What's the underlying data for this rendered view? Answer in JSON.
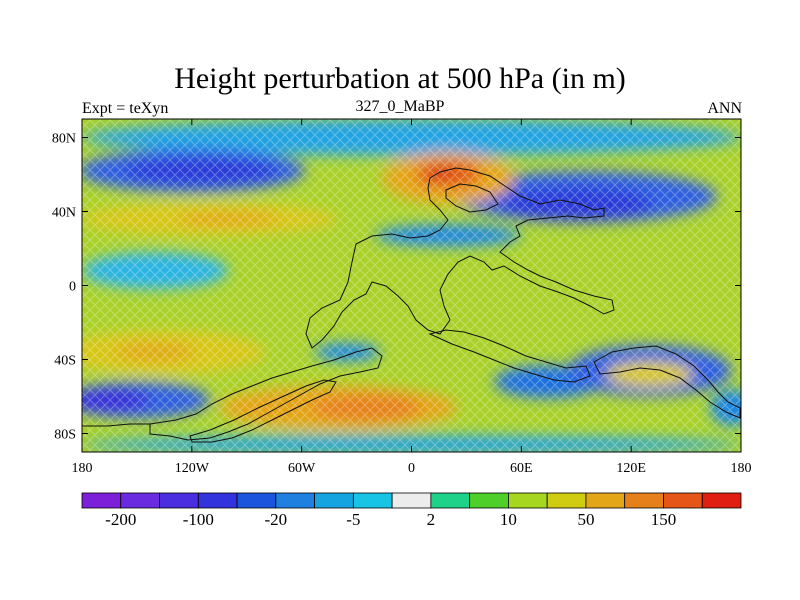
{
  "title": "Height perturbation at 500 hPa (in m)",
  "subtitle_left": "Expt = teXyn",
  "subtitle_center": "327_0_MaBP",
  "subtitle_right": "ANN",
  "lat_ticks": [
    {
      "value": 80,
      "label": "80N"
    },
    {
      "value": 40,
      "label": "40N"
    },
    {
      "value": 0,
      "label": "0"
    },
    {
      "value": -40,
      "label": "40S"
    },
    {
      "value": -80,
      "label": "80S"
    }
  ],
  "lon_ticks": [
    {
      "value": -180,
      "label": "180"
    },
    {
      "value": -120,
      "label": "120W"
    },
    {
      "value": -60,
      "label": "60W"
    },
    {
      "value": 0,
      "label": "0"
    },
    {
      "value": 60,
      "label": "60E"
    },
    {
      "value": 120,
      "label": "120E"
    },
    {
      "value": 180,
      "label": "180"
    }
  ],
  "colorbar": {
    "colors": [
      "#7b1fd9",
      "#6a2be0",
      "#4b2ee0",
      "#3333dd",
      "#1b55dd",
      "#1f80e0",
      "#16a4e0",
      "#18c4e6",
      "#ececec",
      "#1fd28a",
      "#4ecf2a",
      "#a6d61f",
      "#d0cc12",
      "#e3a617",
      "#e6801a",
      "#e65518",
      "#e01e12"
    ],
    "labels": [
      {
        "after_box": 1,
        "text": "-200"
      },
      {
        "after_box": 3,
        "text": "-100"
      },
      {
        "after_box": 5,
        "text": "-20"
      },
      {
        "after_box": 7,
        "text": "-5"
      },
      {
        "after_box": 9,
        "text": "2"
      },
      {
        "after_box": 11,
        "text": "10"
      },
      {
        "after_box": 13,
        "text": "50"
      },
      {
        "after_box": 15,
        "text": "150"
      }
    ]
  },
  "field_background_color": "#a9d12a",
  "field_regions": [
    {
      "name": "north-polar-band",
      "color": "#21a3e2",
      "lon": 0,
      "lat": 80,
      "rx": 180,
      "ry": 10
    },
    {
      "name": "low-nw-pacific",
      "color": "#2f5fe0",
      "lon": -120,
      "lat": 62,
      "rx": 62,
      "ry": 12
    },
    {
      "name": "low-nw-core",
      "color": "#2a3bd8",
      "lon": -115,
      "lat": 62,
      "rx": 42,
      "ry": 7
    },
    {
      "name": "low-ne-asia",
      "color": "#2f5fe0",
      "lon": 95,
      "lat": 48,
      "rx": 72,
      "ry": 14
    },
    {
      "name": "low-ne-core",
      "color": "#2a3bd8",
      "lon": 90,
      "lat": 44,
      "rx": 42,
      "ry": 9
    },
    {
      "name": "low-central-tongue",
      "color": "#1f87e2",
      "lon": 20,
      "lat": 27,
      "rx": 40,
      "ry": 6
    },
    {
      "name": "high-europe",
      "color": "#e4a418",
      "lon": 20,
      "lat": 58,
      "rx": 36,
      "ry": 14
    },
    {
      "name": "high-europe-core",
      "color": "#e25a18",
      "lon": 20,
      "lat": 60,
      "rx": 18,
      "ry": 7
    },
    {
      "name": "high-europe-peak",
      "color": "#d8321a",
      "lon": 16,
      "lat": 61,
      "rx": 8,
      "ry": 3
    },
    {
      "name": "high-west-40n",
      "color": "#d8c614",
      "lon": -110,
      "lat": 36,
      "rx": 70,
      "ry": 9
    },
    {
      "name": "high-west-40n-core",
      "color": "#e2a818",
      "lon": -100,
      "lat": 36,
      "rx": 28,
      "ry": 4
    },
    {
      "name": "low-tropics-west",
      "color": "#2ab4e4",
      "lon": -140,
      "lat": 8,
      "rx": 40,
      "ry": 10
    },
    {
      "name": "high-west-40s",
      "color": "#d8c614",
      "lon": -135,
      "lat": -36,
      "rx": 55,
      "ry": 12
    },
    {
      "name": "high-west-40s-core",
      "color": "#e0a818",
      "lon": -140,
      "lat": -36,
      "rx": 22,
      "ry": 5
    },
    {
      "name": "low-south-american",
      "color": "#1f87e2",
      "lon": -35,
      "lat": -36,
      "rx": 18,
      "ry": 5
    },
    {
      "name": "low-sw-pacific",
      "color": "#2f5fe0",
      "lon": -150,
      "lat": -62,
      "rx": 40,
      "ry": 10
    },
    {
      "name": "low-sw-core",
      "color": "#3a2fd8",
      "lon": -165,
      "lat": -62,
      "rx": 22,
      "ry": 6
    },
    {
      "name": "high-south-atlantic",
      "color": "#e4a418",
      "lon": -40,
      "lat": -66,
      "rx": 65,
      "ry": 12
    },
    {
      "name": "high-south-atlantic-core",
      "color": "#e6801a",
      "lon": -25,
      "lat": -66,
      "rx": 30,
      "ry": 7
    },
    {
      "name": "low-indian-ocean",
      "color": "#1f6fe0",
      "lon": 75,
      "lat": -52,
      "rx": 30,
      "ry": 9
    },
    {
      "name": "low-se-pacific",
      "color": "#2f5fe0",
      "lon": 130,
      "lat": -46,
      "rx": 45,
      "ry": 14
    },
    {
      "name": "high-se-pacific",
      "color": "#d8c614",
      "lon": 130,
      "lat": -48,
      "rx": 24,
      "ry": 7
    },
    {
      "name": "low-far-se",
      "color": "#1f87e2",
      "lon": 175,
      "lat": -66,
      "rx": 12,
      "ry": 10
    },
    {
      "name": "south-polar-band",
      "color": "#21a3e2",
      "lon": 0,
      "lat": -86,
      "rx": 180,
      "ry": 5
    }
  ]
}
